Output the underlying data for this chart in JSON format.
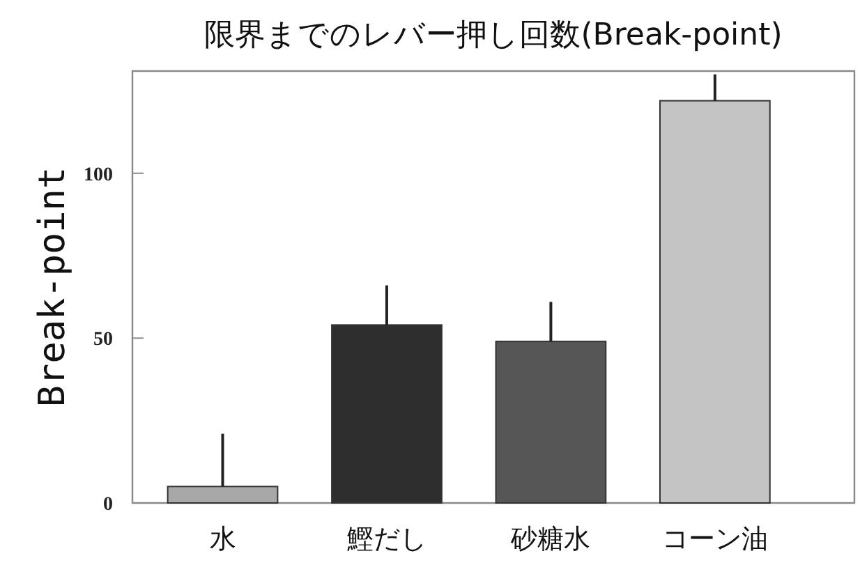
{
  "chart_data": {
    "type": "bar",
    "title": "限界までのレバー押し回数(Break-point)",
    "ylabel": "Break-point",
    "categories": [
      "水",
      "鰹だし",
      "砂糖水",
      "コーン油"
    ],
    "values": [
      5,
      54,
      49,
      122
    ],
    "errors": [
      [
        5,
        21
      ],
      [
        54,
        66
      ],
      [
        49,
        61
      ],
      [
        122,
        130
      ]
    ],
    "colors": [
      "#a8a8a8",
      "#2e2e2e",
      "#565656",
      "#c4c4c4"
    ],
    "ylim": [
      0,
      131
    ],
    "yticks": [
      0,
      50,
      100
    ],
    "grid": false
  }
}
